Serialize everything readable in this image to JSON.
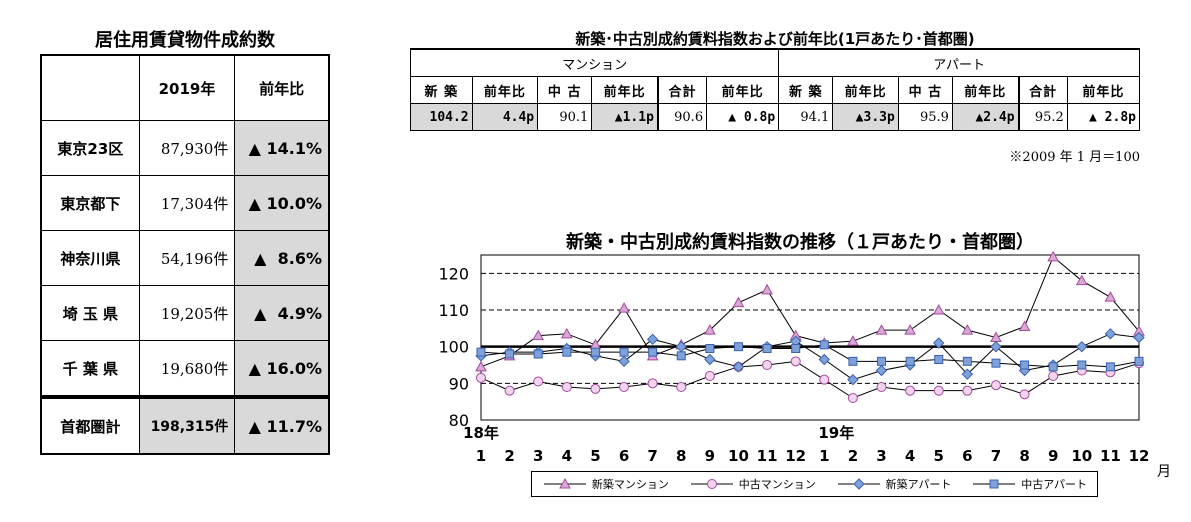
{
  "left": {
    "title": "居住用賃貸物件成約数",
    "header": {
      "year": "2019年",
      "yoy": "前年比"
    },
    "rows": [
      {
        "region": "東京23区",
        "count": "87,930件",
        "yoy": "▲ 14.1%"
      },
      {
        "region": "東京都下",
        "count": "17,304件",
        "yoy": "▲ 10.0%"
      },
      {
        "region": "神奈川県",
        "count": "54,196件",
        "yoy": "▲  8.6%"
      },
      {
        "region": "埼 玉 県",
        "count": "19,205件",
        "yoy": "▲  4.9%"
      },
      {
        "region": "千 葉 県",
        "count": "19,680件",
        "yoy": "▲ 16.0%"
      }
    ],
    "total": {
      "region": "首都圏計",
      "count": "198,315件",
      "yoy": "▲ 11.7%"
    }
  },
  "right": {
    "title": "新築･中古別成約賃料指数および前年比(1戸あたり･首都圏)",
    "groups": {
      "mansion": "マンション",
      "apart": "アパート"
    },
    "subheaders": [
      "新 築",
      "前年比",
      "中 古",
      "前年比",
      "合計",
      "前年比",
      "新 築",
      "前年比",
      "中 古",
      "前年比",
      "合計",
      "前年比"
    ],
    "values": [
      "104.2",
      "4.4p",
      "90.1",
      "▲1.1p",
      "90.6",
      "▲ 0.8p",
      "94.1",
      "▲3.3p",
      "95.9",
      "▲2.4p",
      "95.2",
      "▲ 2.8p"
    ],
    "note": "※2009 年 1 月＝100"
  },
  "chart_data": {
    "type": "line",
    "title": "新築・中古別成約賃料指数の推移（１戸あたり・首都圏）",
    "x": [
      "1",
      "2",
      "3",
      "4",
      "5",
      "6",
      "7",
      "8",
      "9",
      "10",
      "11",
      "12",
      "1",
      "2",
      "3",
      "4",
      "5",
      "6",
      "7",
      "8",
      "9",
      "10",
      "11",
      "12"
    ],
    "year_labels": {
      "0": "18年",
      "12": "19年"
    },
    "x_unit": "月",
    "ylim": [
      80,
      125
    ],
    "yticks": [
      80,
      90,
      100,
      110,
      120
    ],
    "reference_line": 100,
    "dashed_grid": [
      90,
      110,
      120
    ],
    "legend_position": "bottom",
    "series": [
      {
        "name": "新築マンション",
        "marker": "triangle",
        "color": "#a44a9e",
        "values": [
          94.5,
          97.5,
          103,
          103.5,
          100.5,
          110.5,
          97.5,
          100.5,
          104.5,
          112,
          115.5,
          103,
          101,
          101.5,
          104.5,
          104.5,
          110,
          104.5,
          102.5,
          105.5,
          124.5,
          118,
          113.5,
          104.2
        ]
      },
      {
        "name": "中古マンション",
        "marker": "circle",
        "color": "#a44a9e",
        "values": [
          91.5,
          88,
          90.5,
          89,
          88.5,
          89,
          90,
          89,
          92,
          94.5,
          95,
          96,
          91,
          86,
          89,
          88,
          88,
          88,
          89.5,
          87,
          92,
          93.5,
          93,
          95.5
        ]
      },
      {
        "name": "新築アパート",
        "marker": "diamond",
        "color": "#3a62b0",
        "values": [
          97.5,
          98.5,
          98.5,
          99.5,
          97.5,
          96,
          102,
          100,
          96.5,
          94.5,
          100,
          101.5,
          96.5,
          91,
          93.5,
          95,
          101,
          92.5,
          100,
          93.5,
          95,
          100,
          103.5,
          102.5
        ]
      },
      {
        "name": "中古アパート",
        "marker": "square",
        "color": "#3a62b0",
        "values": [
          98.5,
          98,
          98,
          98.5,
          98.5,
          98.5,
          98.5,
          97.5,
          99.5,
          100,
          99.5,
          99.5,
          100.5,
          96,
          96,
          96,
          96.5,
          96,
          95.5,
          95,
          94.5,
          95,
          94.5,
          96
        ]
      }
    ]
  }
}
